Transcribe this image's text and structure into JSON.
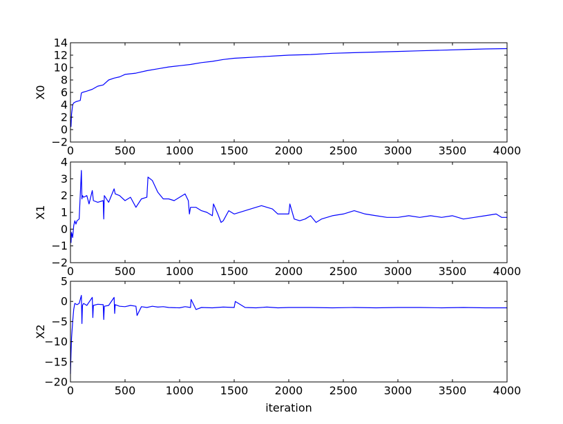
{
  "chart_data": [
    {
      "type": "line",
      "ylabel": "X0",
      "xlabel": "",
      "xlim": [
        0,
        4000
      ],
      "ylim": [
        -2,
        14
      ],
      "xticks": [
        0,
        500,
        1000,
        1500,
        2000,
        2500,
        3000,
        3500,
        4000
      ],
      "yticks": [
        -2,
        0,
        2,
        4,
        6,
        8,
        10,
        12,
        14
      ],
      "grid": false,
      "series": [
        {
          "color": "#0000ff",
          "x": [
            0,
            5,
            10,
            20,
            30,
            50,
            70,
            90,
            100,
            110,
            150,
            200,
            250,
            300,
            350,
            400,
            450,
            500,
            600,
            700,
            800,
            900,
            1000,
            1100,
            1200,
            1300,
            1400,
            1500,
            1600,
            1700,
            1800,
            1900,
            2000,
            2200,
            2400,
            2600,
            2800,
            3000,
            3200,
            3400,
            3600,
            3800,
            4000
          ],
          "y": [
            1.5,
            0.5,
            2.5,
            4.0,
            4.3,
            4.5,
            4.6,
            4.7,
            5.9,
            6.0,
            6.2,
            6.5,
            7.0,
            7.2,
            8.0,
            8.3,
            8.5,
            8.9,
            9.1,
            9.5,
            9.8,
            10.1,
            10.3,
            10.5,
            10.8,
            11.0,
            11.3,
            11.5,
            11.6,
            11.7,
            11.8,
            11.9,
            12.0,
            12.1,
            12.3,
            12.4,
            12.5,
            12.6,
            12.7,
            12.8,
            12.9,
            13.0,
            13.05
          ]
        }
      ]
    },
    {
      "type": "line",
      "ylabel": "X1",
      "xlabel": "",
      "xlim": [
        0,
        4000
      ],
      "ylim": [
        -2,
        4
      ],
      "xticks": [
        0,
        500,
        1000,
        1500,
        2000,
        2500,
        3000,
        3500,
        4000
      ],
      "yticks": [
        -2,
        -1,
        0,
        1,
        2,
        3,
        4
      ],
      "grid": false,
      "series": [
        {
          "color": "#0000ff",
          "x": [
            0,
            5,
            10,
            20,
            30,
            40,
            50,
            60,
            80,
            100,
            105,
            110,
            120,
            150,
            170,
            200,
            210,
            250,
            300,
            305,
            310,
            350,
            400,
            410,
            450,
            500,
            550,
            600,
            650,
            700,
            710,
            750,
            800,
            850,
            900,
            950,
            1000,
            1050,
            1080,
            1090,
            1100,
            1150,
            1200,
            1250,
            1300,
            1310,
            1350,
            1380,
            1400,
            1450,
            1500,
            1600,
            1700,
            1750,
            1800,
            1850,
            1900,
            2000,
            2010,
            2050,
            2100,
            2150,
            2200,
            2250,
            2300,
            2400,
            2500,
            2600,
            2700,
            2800,
            2900,
            3000,
            3100,
            3200,
            3300,
            3400,
            3500,
            3600,
            3700,
            3800,
            3900,
            3950,
            4000
          ],
          "y": [
            0.0,
            -0.8,
            -0.2,
            -0.5,
            0.2,
            0.5,
            0.3,
            0.5,
            0.6,
            3.5,
            1.8,
            2.0,
            1.9,
            2.0,
            1.5,
            2.3,
            1.7,
            1.6,
            1.7,
            0.6,
            2.0,
            1.6,
            2.4,
            2.1,
            2.0,
            1.7,
            1.9,
            1.3,
            1.8,
            1.9,
            3.1,
            2.9,
            2.2,
            1.8,
            1.8,
            1.7,
            1.9,
            2.1,
            1.7,
            0.9,
            1.3,
            1.3,
            1.1,
            1.0,
            0.8,
            1.5,
            0.9,
            0.4,
            0.5,
            1.1,
            0.9,
            1.1,
            1.3,
            1.4,
            1.3,
            1.2,
            0.9,
            0.9,
            1.5,
            0.6,
            0.5,
            0.6,
            0.8,
            0.4,
            0.6,
            0.8,
            0.9,
            1.1,
            0.9,
            0.8,
            0.7,
            0.7,
            0.8,
            0.7,
            0.8,
            0.7,
            0.8,
            0.6,
            0.7,
            0.8,
            0.9,
            0.7,
            0.7
          ]
        }
      ]
    },
    {
      "type": "line",
      "ylabel": "X2",
      "xlabel": "iteration",
      "xlim": [
        0,
        4000
      ],
      "ylim": [
        -20,
        5
      ],
      "xticks": [
        0,
        500,
        1000,
        1500,
        2000,
        2500,
        3000,
        3500,
        4000
      ],
      "yticks": [
        -20,
        -15,
        -10,
        -5,
        0,
        5
      ],
      "grid": false,
      "series": [
        {
          "color": "#0000ff",
          "x": [
            0,
            5,
            10,
            20,
            30,
            40,
            60,
            80,
            100,
            105,
            110,
            120,
            150,
            200,
            205,
            210,
            250,
            300,
            305,
            310,
            350,
            400,
            405,
            410,
            450,
            500,
            550,
            600,
            610,
            650,
            700,
            750,
            800,
            850,
            900,
            1000,
            1050,
            1100,
            1105,
            1150,
            1200,
            1300,
            1400,
            1500,
            1510,
            1600,
            1700,
            1800,
            1900,
            2000,
            2200,
            2400,
            2600,
            2800,
            3000,
            3200,
            3400,
            3600,
            3800,
            4000
          ],
          "y": [
            -18,
            -13,
            -9,
            -5,
            -2,
            -0.5,
            -0.8,
            -0.5,
            1.5,
            -5.5,
            -1.0,
            -0.5,
            -1.0,
            1.0,
            -4.0,
            -1.0,
            -0.7,
            -0.8,
            -4.5,
            -1.2,
            -1.0,
            1.0,
            -3.0,
            -0.8,
            -1.2,
            -1.3,
            -1.0,
            -1.2,
            -3.5,
            -1.3,
            -1.5,
            -1.2,
            -1.4,
            -1.3,
            -1.5,
            -1.6,
            -1.3,
            -1.5,
            0.5,
            -2.0,
            -1.5,
            -1.6,
            -1.4,
            -1.5,
            0.0,
            -1.5,
            -1.6,
            -1.4,
            -1.6,
            -1.5,
            -1.5,
            -1.6,
            -1.5,
            -1.6,
            -1.5,
            -1.5,
            -1.6,
            -1.5,
            -1.6,
            -1.6
          ]
        }
      ]
    }
  ]
}
